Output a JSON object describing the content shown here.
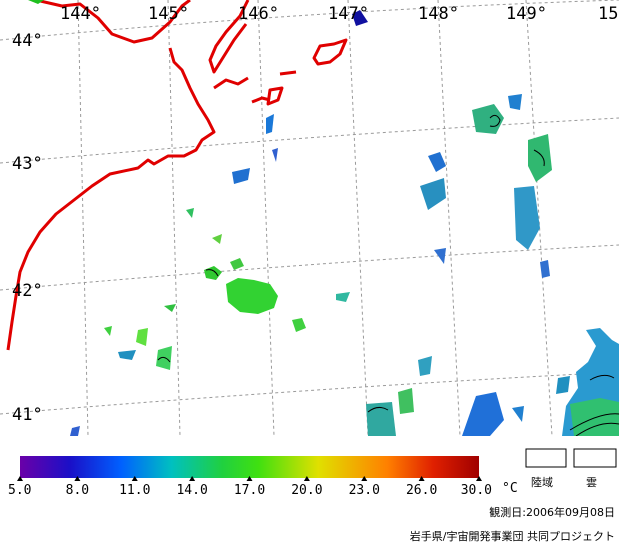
{
  "map": {
    "longitude_labels": [
      "144°",
      "145°",
      "146°",
      "147°",
      "148°",
      "149°",
      "15"
    ],
    "latitude_labels": [
      "44°",
      "43°",
      "42°",
      "41°"
    ]
  },
  "legend": {
    "colorbar": {
      "stops": [
        "#6a00a8",
        "#1a10c8",
        "#0060ff",
        "#00c0c0",
        "#20d040",
        "#40e010",
        "#e0e000",
        "#ff8000",
        "#e02000",
        "#a00000"
      ],
      "tick_labels": [
        "5.0",
        "8.0",
        "11.0",
        "14.0",
        "17.0",
        "20.0",
        "23.0",
        "26.0",
        "30.0"
      ],
      "unit": "°C"
    },
    "land_label": "陸域",
    "cloud_label": "雲",
    "observation_date": "観測日:2006年09月08日",
    "credit": "岩手県/宇宙開発事業団 共同プロジェクト"
  }
}
